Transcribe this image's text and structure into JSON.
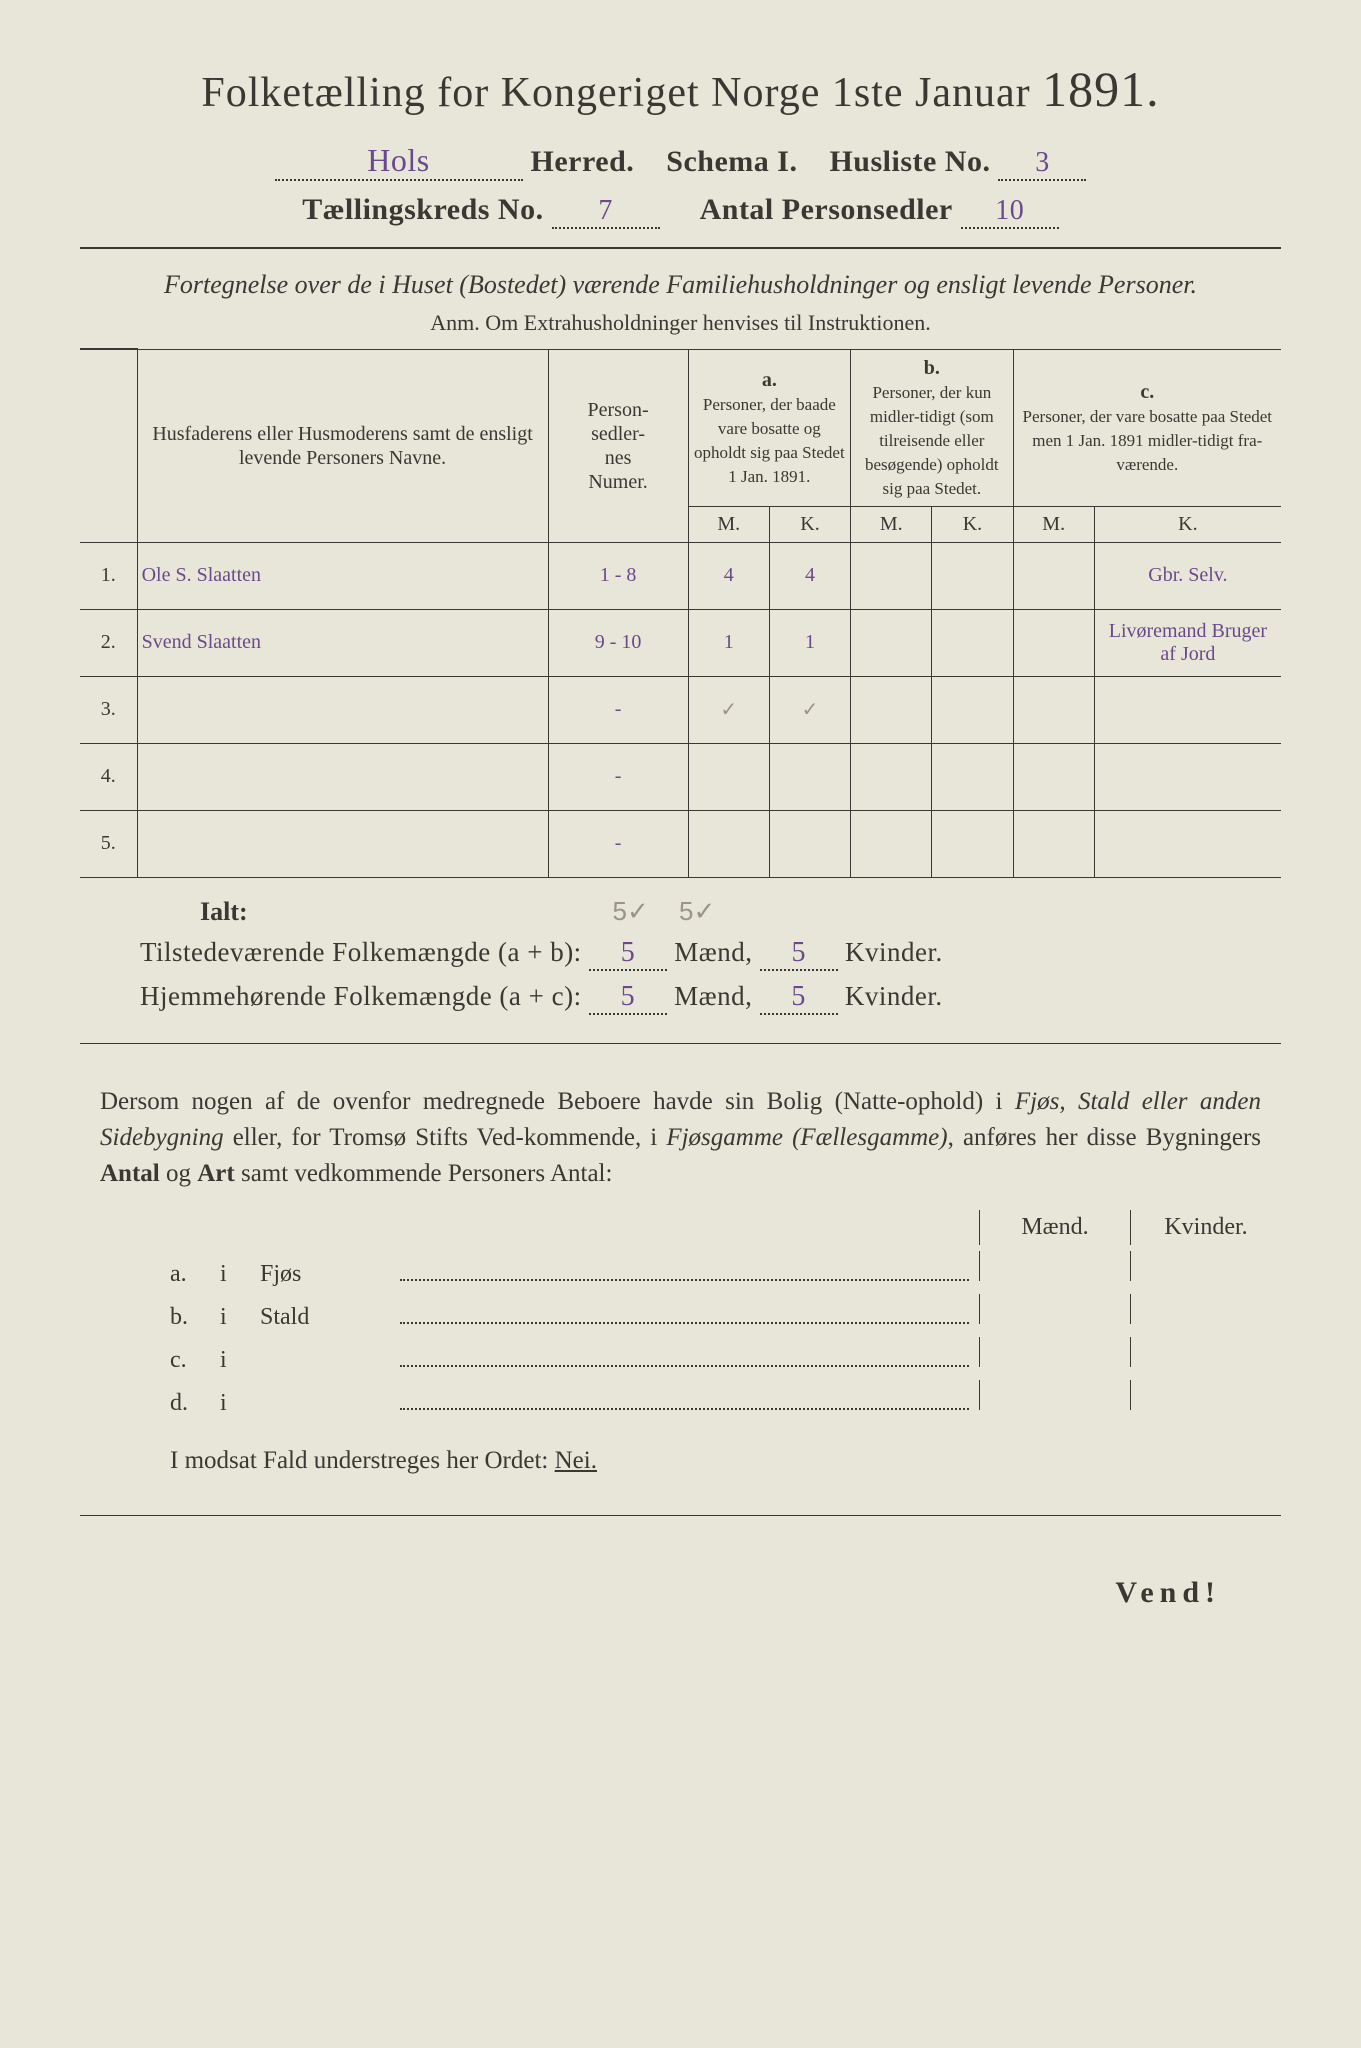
{
  "title_main": "Folketælling for Kongeriget Norge 1ste Januar",
  "title_year": "1891.",
  "header": {
    "herred_value": "Hols",
    "herred_label": "Herred.",
    "schema_label": "Schema I.",
    "husliste_label": "Husliste No.",
    "husliste_value": "3",
    "kreds_label": "Tællingskreds No.",
    "kreds_value": "7",
    "personsedler_label": "Antal Personsedler",
    "personsedler_value": "10"
  },
  "subtitle": "Fortegnelse over de i Huset (Bostedet) værende Familiehusholdninger og ensligt levende Personer.",
  "anm": "Anm.  Om Extrahusholdninger henvises til Instruktionen.",
  "columns": {
    "name": "Husfaderens eller Husmoderens samt de ensligt levende Personers Navne.",
    "numer": "Person-\nsedler-\nnes\nNumer.",
    "a_label": "a.",
    "a_text": "Personer, der baade vare bosatte og opholdt sig paa Stedet 1 Jan. 1891.",
    "b_label": "b.",
    "b_text": "Personer, der kun midler-tidigt (som tilreisende eller besøgende) opholdt sig paa Stedet.",
    "c_label": "c.",
    "c_text": "Personer, der vare bosatte paa Stedet men 1 Jan. 1891 midler-tidigt fra-værende.",
    "m": "M.",
    "k": "K."
  },
  "rows": [
    {
      "n": "1.",
      "name": "Ole S. Slaatten",
      "numer": "1 - 8",
      "am": "4",
      "ak": "4",
      "bm": "",
      "bk": "",
      "cm": "",
      "ck": "",
      "note": "Gbr. Selv."
    },
    {
      "n": "2.",
      "name": "Svend Slaatten",
      "numer": "9 - 10",
      "am": "1",
      "ak": "1",
      "bm": "",
      "bk": "",
      "cm": "",
      "ck": "",
      "note": "Livøremand Bruger af Jord"
    },
    {
      "n": "3.",
      "name": "",
      "numer": "-",
      "am": "✓",
      "ak": "✓",
      "bm": "",
      "bk": "",
      "cm": "",
      "ck": "",
      "note": ""
    },
    {
      "n": "4.",
      "name": "",
      "numer": "-",
      "am": "",
      "ak": "",
      "bm": "",
      "bk": "",
      "cm": "",
      "ck": "",
      "note": ""
    },
    {
      "n": "5.",
      "name": "",
      "numer": "-",
      "am": "",
      "ak": "",
      "bm": "",
      "bk": "",
      "cm": "",
      "ck": "",
      "note": ""
    }
  ],
  "ialt_label": "Ialt:",
  "ialt_pencil_m": "5✓",
  "ialt_pencil_k": "5✓",
  "sums": {
    "line1_label": "Tilstedeværende Folkemængde (a + b):",
    "line2_label": "Hjemmehørende Folkemængde (a + c):",
    "m1": "5",
    "k1": "5",
    "m2": "5",
    "k2": "5",
    "maend": "Mænd,",
    "kvinder": "Kvinder."
  },
  "paragraph": {
    "p1": "Dersom nogen af de ovenfor medregnede Beboere havde sin Bolig (Natte-ophold) i ",
    "i1": "Fjøs, Stald eller anden Sidebygning",
    "p2": " eller, for Tromsø Stifts Ved-kommende, i ",
    "i2": "Fjøsgamme (Fællesgamme)",
    "p3": ", anføres her disse Bygningers ",
    "b1": "Antal",
    "p4": " og ",
    "b2": "Art",
    "p5": " samt vedkommende Personers Antal:"
  },
  "mk": {
    "maend": "Mænd.",
    "kvinder": "Kvinder."
  },
  "sublist": [
    {
      "tag": "a.",
      "i": "i",
      "label": "Fjøs"
    },
    {
      "tag": "b.",
      "i": "i",
      "label": "Stald"
    },
    {
      "tag": "c.",
      "i": "i",
      "label": ""
    },
    {
      "tag": "d.",
      "i": "i",
      "label": ""
    }
  ],
  "nei_pre": "I modsat Fald understreges her Ordet: ",
  "nei": "Nei.",
  "vend": "Vend!"
}
